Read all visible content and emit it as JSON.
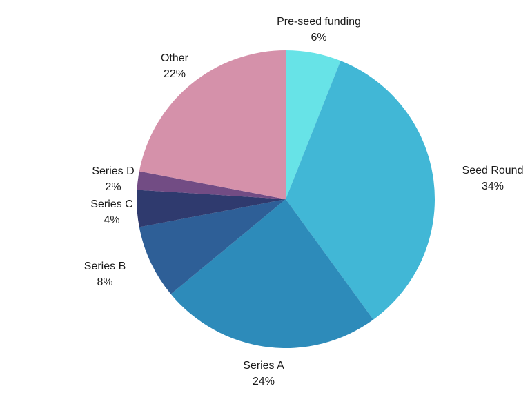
{
  "chart_data": {
    "type": "pie",
    "title": "",
    "categories": [
      "Pre-seed funding",
      "Seed Round",
      "Series A",
      "Series B",
      "Series C",
      "Series D",
      "Other"
    ],
    "values": [
      6,
      34,
      24,
      8,
      4,
      2,
      22
    ],
    "value_labels": [
      "6%",
      "34%",
      "24%",
      "8%",
      "4%",
      "2%",
      "22%"
    ],
    "colors": [
      "#67E3E7",
      "#41B7D6",
      "#2D8BBA",
      "#2E5F97",
      "#2F3A6E",
      "#724C84",
      "#D591AA"
    ],
    "start": "top",
    "direction": "clockwise",
    "legend": "none"
  }
}
